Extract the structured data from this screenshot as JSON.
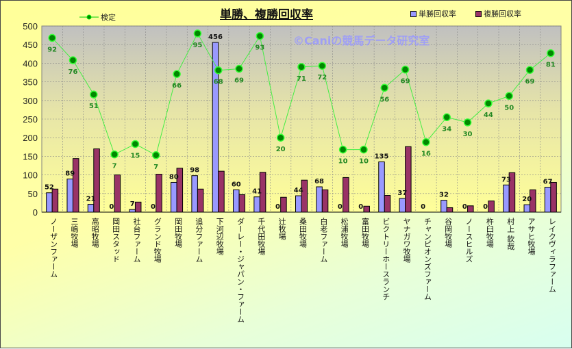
{
  "chart_data": {
    "type": "bar",
    "title": "単勝、複勝回収率",
    "watermark": "©Caniの競馬データ研究室",
    "ylim": [
      0,
      500
    ],
    "yticks": [
      0,
      50,
      100,
      150,
      200,
      250,
      300,
      350,
      400,
      450,
      500
    ],
    "grid": true,
    "legend_placement": "top",
    "categories": [
      "ノーザンファーム",
      "三嶋牧場",
      "高昭牧場",
      "岡田スタッド",
      "社台ファーム",
      "グランド牧場",
      "岡田牧場",
      "追分ファーム",
      "下河辺牧場",
      "ダーレー・ジャパン・ファーム",
      "千代田牧場",
      "辻牧場",
      "桑田牧場",
      "白老ファーム",
      "松浦牧場",
      "富田牧場",
      "ビクトリーホースランチ",
      "ヤナガワ牧場",
      "チャンピオンズファーム",
      "谷岡牧場",
      "ノースヒルズ",
      "杵臼牧場",
      "村上 欽哉",
      "アサヒ牧場",
      "レイクヴィラファーム"
    ],
    "series": [
      {
        "name": "単勝回収率",
        "type": "bar",
        "color": "#9999ff",
        "values": [
          52,
          89,
          21,
          0,
          7,
          0,
          80,
          98,
          456,
          60,
          41,
          0,
          44,
          68,
          0,
          0,
          135,
          37,
          0,
          32,
          0,
          0,
          73,
          20,
          67
        ]
      },
      {
        "name": "複勝回収率",
        "type": "bar",
        "color": "#993366",
        "values": [
          62,
          144,
          170,
          100,
          27,
          102,
          118,
          62,
          110,
          47,
          107,
          40,
          86,
          60,
          93,
          16,
          45,
          176,
          0,
          12,
          17,
          30,
          106,
          60,
          80
        ]
      },
      {
        "name": "検定",
        "type": "line",
        "color": "#00cc00",
        "values": [
          468,
          408,
          316,
          155,
          183,
          153,
          371,
          480,
          381,
          385,
          473,
          200,
          390,
          393,
          168,
          168,
          334,
          383,
          188,
          255,
          241,
          292,
          312,
          382,
          427
        ],
        "labels": [
          92,
          76,
          51,
          7,
          15,
          7,
          66,
          95,
          68,
          69,
          93,
          20,
          71,
          72,
          10,
          10,
          56,
          69,
          16,
          34,
          30,
          44,
          50,
          69,
          81
        ]
      }
    ]
  }
}
